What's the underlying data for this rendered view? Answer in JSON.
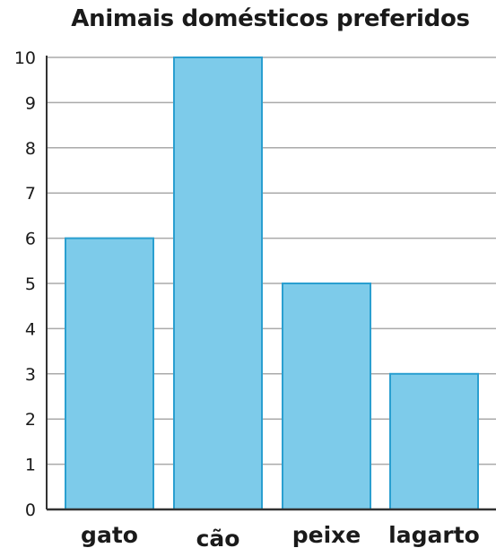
{
  "chart_data": {
    "type": "bar",
    "title": "Animais domésticos preferidos",
    "xlabel": "",
    "ylabel": "",
    "categories": [
      "gato",
      "cão",
      "peixe",
      "lagarto"
    ],
    "values": [
      6,
      10,
      5,
      3
    ],
    "ylim": [
      0,
      10
    ],
    "yticks": [
      "0",
      "1",
      "2",
      "3",
      "4",
      "5",
      "6",
      "7",
      "8",
      "9",
      "10"
    ],
    "grid": true,
    "legend": "none",
    "colors": {
      "bar_fill": "#7dcbea",
      "bar_stroke": "#2a9fd0",
      "grid": "#aaaaaa",
      "axis": "#333333"
    }
  }
}
